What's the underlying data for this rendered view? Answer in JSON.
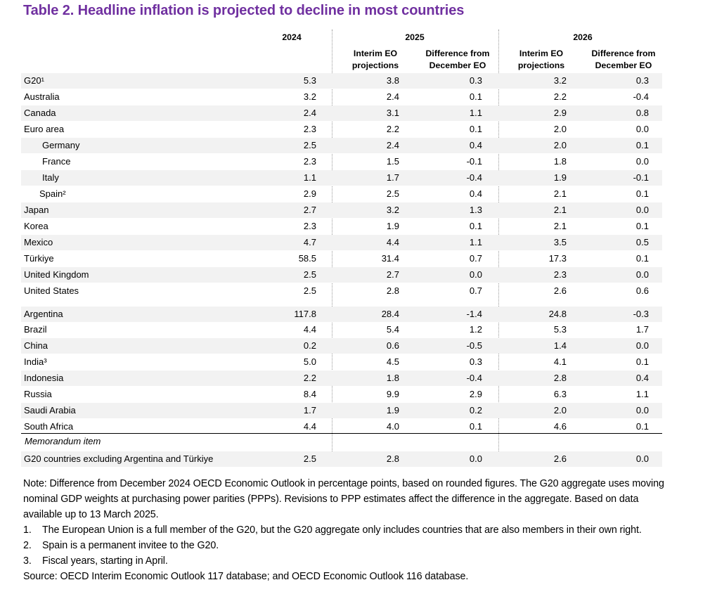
{
  "title": "Table 2. Headline inflation is projected to decline in most countries",
  "header": {
    "year_2024": "2024",
    "year_2025": "2025",
    "year_2026": "2026",
    "interim_line1": "Interim EO",
    "interim_line2": "projections",
    "diff_line1": "Difference from",
    "diff_line2": "December EO"
  },
  "rows": [
    {
      "name": "G20¹",
      "v2024": "5.3",
      "p2025": "3.8",
      "d2025": "0.3",
      "p2026": "3.2",
      "d2026": "0.3"
    },
    {
      "name": "Australia",
      "v2024": "3.2",
      "p2025": "2.4",
      "d2025": "0.1",
      "p2026": "2.2",
      "d2026": "-0.4"
    },
    {
      "name": "Canada",
      "v2024": "2.4",
      "p2025": "3.1",
      "d2025": "1.1",
      "p2026": "2.9",
      "d2026": "0.8"
    },
    {
      "name": "Euro area",
      "v2024": "2.3",
      "p2025": "2.2",
      "d2025": "0.1",
      "p2026": "2.0",
      "d2026": "0.0"
    },
    {
      "name": "Germany",
      "v2024": "2.5",
      "p2025": "2.4",
      "d2025": "0.4",
      "p2026": "2.0",
      "d2026": "0.1"
    },
    {
      "name": "France",
      "v2024": "2.3",
      "p2025": "1.5",
      "d2025": "-0.1",
      "p2026": "1.8",
      "d2026": "0.0"
    },
    {
      "name": "Italy",
      "v2024": "1.1",
      "p2025": "1.7",
      "d2025": "-0.4",
      "p2026": "1.9",
      "d2026": "-0.1"
    },
    {
      "name": "Spain²",
      "v2024": "2.9",
      "p2025": "2.5",
      "d2025": "0.4",
      "p2026": "2.1",
      "d2026": "0.1"
    },
    {
      "name": "Japan",
      "v2024": "2.7",
      "p2025": "3.2",
      "d2025": "1.3",
      "p2026": "2.1",
      "d2026": "0.0"
    },
    {
      "name": "Korea",
      "v2024": "2.3",
      "p2025": "1.9",
      "d2025": "0.1",
      "p2026": "2.1",
      "d2026": "0.1"
    },
    {
      "name": "Mexico",
      "v2024": "4.7",
      "p2025": "4.4",
      "d2025": "1.1",
      "p2026": "3.5",
      "d2026": "0.5"
    },
    {
      "name": "Türkiye",
      "v2024": "58.5",
      "p2025": "31.4",
      "d2025": "0.7",
      "p2026": "17.3",
      "d2026": "0.1"
    },
    {
      "name": "United Kingdom",
      "v2024": "2.5",
      "p2025": "2.7",
      "d2025": "0.0",
      "p2026": "2.3",
      "d2026": "0.0"
    },
    {
      "name": "United States",
      "v2024": "2.5",
      "p2025": "2.8",
      "d2025": "0.7",
      "p2026": "2.6",
      "d2026": "0.6"
    },
    {
      "name": "Argentina",
      "v2024": "117.8",
      "p2025": "28.4",
      "d2025": "-1.4",
      "p2026": "24.8",
      "d2026": "-0.3"
    },
    {
      "name": "Brazil",
      "v2024": "4.4",
      "p2025": "5.4",
      "d2025": "1.2",
      "p2026": "5.3",
      "d2026": "1.7"
    },
    {
      "name": "China",
      "v2024": "0.2",
      "p2025": "0.6",
      "d2025": "-0.5",
      "p2026": "1.4",
      "d2026": "0.0"
    },
    {
      "name": "India³",
      "v2024": "5.0",
      "p2025": "4.5",
      "d2025": "0.3",
      "p2026": "4.1",
      "d2026": "0.1"
    },
    {
      "name": "Indonesia",
      "v2024": "2.2",
      "p2025": "1.8",
      "d2025": "-0.4",
      "p2026": "2.8",
      "d2026": "0.4"
    },
    {
      "name": "Russia",
      "v2024": "8.4",
      "p2025": "9.9",
      "d2025": "2.9",
      "p2026": "6.3",
      "d2026": "1.1"
    },
    {
      "name": "Saudi Arabia",
      "v2024": "1.7",
      "p2025": "1.9",
      "d2025": "0.2",
      "p2026": "2.0",
      "d2026": "0.0"
    },
    {
      "name": "South Africa",
      "v2024": "4.4",
      "p2025": "4.0",
      "d2025": "0.1",
      "p2026": "4.6",
      "d2026": "0.1"
    }
  ],
  "memorandum_label": "Memorandum item",
  "memo_row": {
    "name": "G20 countries excluding Argentina and Türkiye",
    "v2024": "2.5",
    "p2025": "2.8",
    "d2025": "0.0",
    "p2026": "2.6",
    "d2026": "0.0"
  },
  "notes": {
    "note": "Note: Difference from December 2024 OECD Economic Outlook in percentage points, based on rounded figures. The G20 aggregate uses moving nominal GDP weights at purchasing power parities (PPPs). Revisions to PPP estimates affect the difference in the aggregate. Based on data available up to 13 March 2025.",
    "footnotes": [
      {
        "num": "1.",
        "text": "The European Union is a full member of the G20, but the G20 aggregate only includes countries that are also members in their own right."
      },
      {
        "num": "2.",
        "text": "Spain is a permanent invitee to the G20."
      },
      {
        "num": "3.",
        "text": "Fiscal years, starting in April."
      }
    ],
    "source": "Source: OECD Interim Economic Outlook 117 database; and OECD Economic Outlook 116 database."
  }
}
